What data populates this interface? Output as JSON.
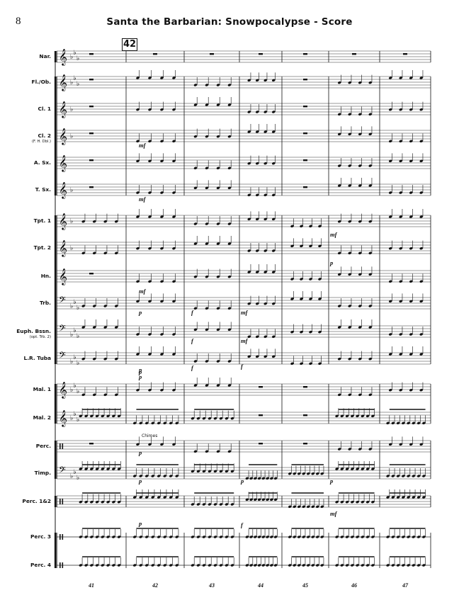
{
  "page": {
    "number": "8",
    "title": "Santa the Barbarian: Snowpocalypse - Score",
    "rehearsal_mark": "42"
  },
  "instruments": [
    {
      "label": "Nar.",
      "sub": "",
      "clef": "treble",
      "key": "flat3"
    },
    {
      "label": "Fl./Ob.",
      "sub": "",
      "clef": "treble",
      "key": "flat3"
    },
    {
      "label": "Cl. 1",
      "sub": "",
      "clef": "treble",
      "key": "flat1"
    },
    {
      "label": "Cl. 2",
      "sub": "(F. H. Dbl.)",
      "clef": "treble",
      "key": "flat1"
    },
    {
      "label": "A. Sx.",
      "sub": "",
      "clef": "treble",
      "key": "none"
    },
    {
      "label": "T. Sx.",
      "sub": "",
      "clef": "treble",
      "key": "flat1"
    },
    {
      "label": "Tpt. 1",
      "sub": "",
      "clef": "treble",
      "key": "flat1"
    },
    {
      "label": "Tpt. 2",
      "sub": "",
      "clef": "treble",
      "key": "flat1"
    },
    {
      "label": "Hn.",
      "sub": "",
      "clef": "treble",
      "key": "none"
    },
    {
      "label": "Trb.",
      "sub": "",
      "clef": "bass",
      "key": "flat3"
    },
    {
      "label": "Euph. Bssn.",
      "sub": "(opt. Trb. 2)",
      "clef": "bass",
      "key": "flat3"
    },
    {
      "label": "L.R. Tuba",
      "sub": "",
      "clef": "bass",
      "key": "flat3"
    },
    {
      "label": "Mal. 1",
      "sub": "",
      "clef": "treble",
      "key": "flat3"
    },
    {
      "label": "Mal. 2",
      "sub": "",
      "clef": "treble",
      "key": "flat3"
    },
    {
      "label": "Perc.",
      "sub": "",
      "clef": "perc",
      "key": "none"
    },
    {
      "label": "Timp.",
      "sub": "",
      "clef": "bass",
      "key": "flat3"
    },
    {
      "label": "Perc. 1&2",
      "sub": "",
      "clef": "perc",
      "key": "none"
    },
    {
      "label": "Perc. 3",
      "sub": "",
      "clef": "perc",
      "key": "none"
    },
    {
      "label": "Perc. 4",
      "sub": "",
      "clef": "perc",
      "key": "none"
    }
  ],
  "measures": [
    "41",
    "42",
    "43",
    "44",
    "45",
    "46",
    "47"
  ],
  "dynamics": [
    "mf",
    "mf",
    "mf",
    "p",
    "p",
    "p",
    "mf",
    "p",
    "p",
    "f",
    "f",
    "f",
    "mf",
    "mf",
    "f",
    "p",
    "p",
    "p",
    "mf",
    "p",
    "p",
    "f"
  ],
  "annotations": {
    "chimes": "Chimes"
  }
}
